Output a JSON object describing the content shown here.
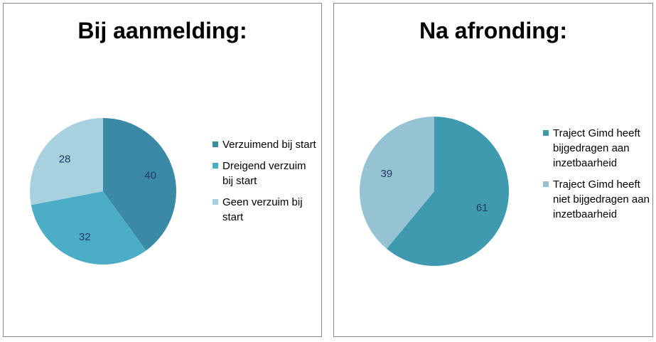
{
  "chart_data": [
    {
      "type": "pie",
      "title": "Bij aanmelding:",
      "categories": [
        "Verzuimend bij start",
        "Dreigend verzuim bij start",
        "Geen verzuim bij start"
      ],
      "values": [
        40,
        32,
        28
      ],
      "labels": [
        "40",
        "32",
        "28"
      ],
      "colors": [
        "#3B8AA5",
        "#4BADC6",
        "#A8D1E0"
      ],
      "legend_position": "right"
    },
    {
      "type": "pie",
      "title": "Na afronding:",
      "categories": [
        "Traject Gimd heeft bijgedragen aan inzetbaarheid",
        "Traject Gimd heeft niet bijgedragen aan inzetbaarheid"
      ],
      "values": [
        61,
        39
      ],
      "labels": [
        "61",
        "39"
      ],
      "colors": [
        "#3F9AB0",
        "#96C3D4"
      ],
      "legend_position": "right"
    }
  ]
}
